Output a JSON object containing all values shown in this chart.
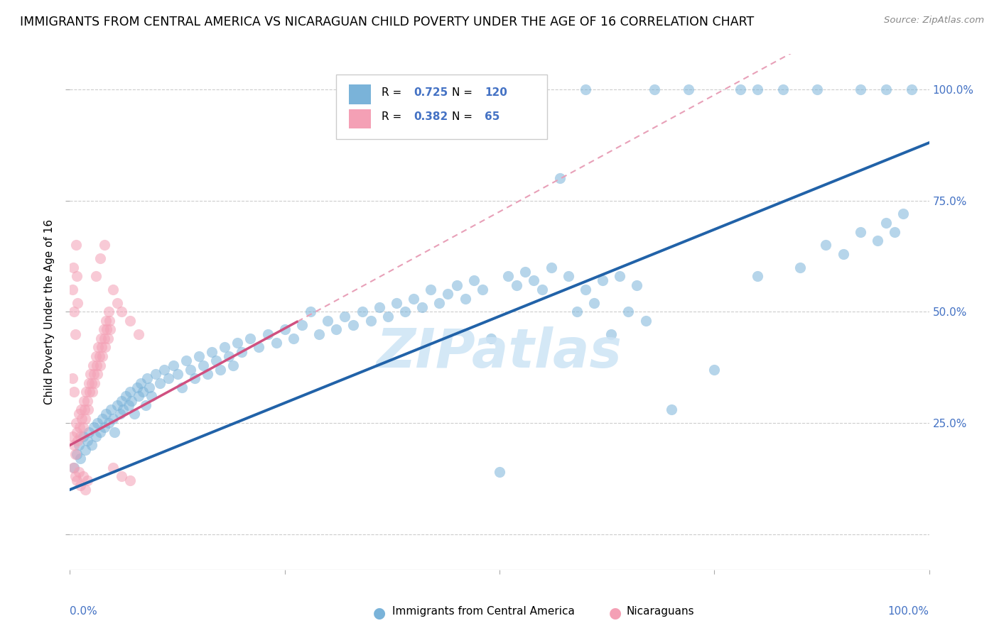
{
  "title": "IMMIGRANTS FROM CENTRAL AMERICA VS NICARAGUAN CHILD POVERTY UNDER THE AGE OF 16 CORRELATION CHART",
  "source": "Source: ZipAtlas.com",
  "ylabel": "Child Poverty Under the Age of 16",
  "legend_label1": "Immigrants from Central America",
  "legend_label2": "Nicaraguans",
  "R1": 0.725,
  "N1": 120,
  "R2": 0.382,
  "N2": 65,
  "color_blue": "#7ab3d9",
  "color_pink": "#f4a0b5",
  "color_blue_line": "#2162a8",
  "color_pink_line": "#d05080",
  "color_dashed": "#e8a0b8",
  "watermark_color": "#cde4f5",
  "bg_color": "#ffffff",
  "grid_color": "#cccccc",
  "title_fontsize": 12.5,
  "tick_label_color": "#4472c4",
  "blue_line_slope": 0.78,
  "blue_line_intercept": 0.1,
  "pink_line_slope": 1.05,
  "pink_line_intercept": 0.2,
  "dashed_line_slope": 1.05,
  "dashed_line_intercept": 0.2,
  "xlim": [
    0,
    1
  ],
  "ylim": [
    -0.08,
    1.08
  ],
  "yticks": [
    0.0,
    0.25,
    0.5,
    0.75,
    1.0
  ],
  "ytick_labels_right": [
    "",
    "25.0%",
    "50.0%",
    "75.0%",
    "100.0%"
  ],
  "blue_scatter": [
    [
      0.005,
      0.15
    ],
    [
      0.008,
      0.18
    ],
    [
      0.01,
      0.2
    ],
    [
      0.012,
      0.17
    ],
    [
      0.015,
      0.22
    ],
    [
      0.018,
      0.19
    ],
    [
      0.02,
      0.21
    ],
    [
      0.022,
      0.23
    ],
    [
      0.025,
      0.2
    ],
    [
      0.028,
      0.24
    ],
    [
      0.03,
      0.22
    ],
    [
      0.032,
      0.25
    ],
    [
      0.035,
      0.23
    ],
    [
      0.038,
      0.26
    ],
    [
      0.04,
      0.24
    ],
    [
      0.042,
      0.27
    ],
    [
      0.045,
      0.25
    ],
    [
      0.048,
      0.28
    ],
    [
      0.05,
      0.26
    ],
    [
      0.052,
      0.23
    ],
    [
      0.055,
      0.29
    ],
    [
      0.058,
      0.27
    ],
    [
      0.06,
      0.3
    ],
    [
      0.062,
      0.28
    ],
    [
      0.065,
      0.31
    ],
    [
      0.068,
      0.29
    ],
    [
      0.07,
      0.32
    ],
    [
      0.072,
      0.3
    ],
    [
      0.075,
      0.27
    ],
    [
      0.078,
      0.33
    ],
    [
      0.08,
      0.31
    ],
    [
      0.082,
      0.34
    ],
    [
      0.085,
      0.32
    ],
    [
      0.088,
      0.29
    ],
    [
      0.09,
      0.35
    ],
    [
      0.092,
      0.33
    ],
    [
      0.095,
      0.31
    ],
    [
      0.1,
      0.36
    ],
    [
      0.105,
      0.34
    ],
    [
      0.11,
      0.37
    ],
    [
      0.115,
      0.35
    ],
    [
      0.12,
      0.38
    ],
    [
      0.125,
      0.36
    ],
    [
      0.13,
      0.33
    ],
    [
      0.135,
      0.39
    ],
    [
      0.14,
      0.37
    ],
    [
      0.145,
      0.35
    ],
    [
      0.15,
      0.4
    ],
    [
      0.155,
      0.38
    ],
    [
      0.16,
      0.36
    ],
    [
      0.165,
      0.41
    ],
    [
      0.17,
      0.39
    ],
    [
      0.175,
      0.37
    ],
    [
      0.18,
      0.42
    ],
    [
      0.185,
      0.4
    ],
    [
      0.19,
      0.38
    ],
    [
      0.195,
      0.43
    ],
    [
      0.2,
      0.41
    ],
    [
      0.21,
      0.44
    ],
    [
      0.22,
      0.42
    ],
    [
      0.23,
      0.45
    ],
    [
      0.24,
      0.43
    ],
    [
      0.25,
      0.46
    ],
    [
      0.26,
      0.44
    ],
    [
      0.27,
      0.47
    ],
    [
      0.28,
      0.5
    ],
    [
      0.29,
      0.45
    ],
    [
      0.3,
      0.48
    ],
    [
      0.31,
      0.46
    ],
    [
      0.32,
      0.49
    ],
    [
      0.33,
      0.47
    ],
    [
      0.34,
      0.5
    ],
    [
      0.35,
      0.48
    ],
    [
      0.36,
      0.51
    ],
    [
      0.37,
      0.49
    ],
    [
      0.38,
      0.52
    ],
    [
      0.39,
      0.5
    ],
    [
      0.4,
      0.53
    ],
    [
      0.41,
      0.51
    ],
    [
      0.42,
      0.55
    ],
    [
      0.43,
      0.52
    ],
    [
      0.44,
      0.54
    ],
    [
      0.45,
      0.56
    ],
    [
      0.46,
      0.53
    ],
    [
      0.47,
      0.57
    ],
    [
      0.48,
      0.55
    ],
    [
      0.49,
      0.44
    ],
    [
      0.5,
      0.14
    ],
    [
      0.51,
      0.58
    ],
    [
      0.52,
      0.56
    ],
    [
      0.53,
      0.59
    ],
    [
      0.54,
      0.57
    ],
    [
      0.55,
      0.55
    ],
    [
      0.56,
      0.6
    ],
    [
      0.57,
      0.8
    ],
    [
      0.58,
      0.58
    ],
    [
      0.59,
      0.5
    ],
    [
      0.6,
      0.55
    ],
    [
      0.61,
      0.52
    ],
    [
      0.62,
      0.57
    ],
    [
      0.63,
      0.45
    ],
    [
      0.64,
      0.58
    ],
    [
      0.65,
      0.5
    ],
    [
      0.66,
      0.56
    ],
    [
      0.67,
      0.48
    ],
    [
      0.7,
      0.28
    ],
    [
      0.75,
      0.37
    ],
    [
      0.8,
      0.58
    ],
    [
      0.85,
      0.6
    ],
    [
      0.88,
      0.65
    ],
    [
      0.9,
      0.63
    ],
    [
      0.92,
      0.68
    ],
    [
      0.94,
      0.66
    ],
    [
      0.95,
      0.7
    ],
    [
      0.96,
      0.68
    ],
    [
      0.97,
      0.72
    ],
    [
      0.6,
      1.0
    ],
    [
      0.68,
      1.0
    ],
    [
      0.72,
      1.0
    ],
    [
      0.78,
      1.0
    ],
    [
      0.8,
      1.0
    ],
    [
      0.83,
      1.0
    ],
    [
      0.87,
      1.0
    ],
    [
      0.92,
      1.0
    ],
    [
      0.95,
      1.0
    ],
    [
      0.98,
      1.0
    ]
  ],
  "pink_scatter": [
    [
      0.003,
      0.22
    ],
    [
      0.005,
      0.2
    ],
    [
      0.006,
      0.18
    ],
    [
      0.007,
      0.25
    ],
    [
      0.008,
      0.23
    ],
    [
      0.009,
      0.21
    ],
    [
      0.01,
      0.27
    ],
    [
      0.011,
      0.24
    ],
    [
      0.012,
      0.22
    ],
    [
      0.013,
      0.28
    ],
    [
      0.014,
      0.26
    ],
    [
      0.015,
      0.24
    ],
    [
      0.016,
      0.3
    ],
    [
      0.017,
      0.28
    ],
    [
      0.018,
      0.26
    ],
    [
      0.019,
      0.32
    ],
    [
      0.02,
      0.3
    ],
    [
      0.021,
      0.28
    ],
    [
      0.022,
      0.34
    ],
    [
      0.023,
      0.32
    ],
    [
      0.024,
      0.36
    ],
    [
      0.025,
      0.34
    ],
    [
      0.026,
      0.32
    ],
    [
      0.027,
      0.38
    ],
    [
      0.028,
      0.36
    ],
    [
      0.029,
      0.34
    ],
    [
      0.03,
      0.4
    ],
    [
      0.031,
      0.38
    ],
    [
      0.032,
      0.36
    ],
    [
      0.033,
      0.42
    ],
    [
      0.034,
      0.4
    ],
    [
      0.035,
      0.38
    ],
    [
      0.036,
      0.44
    ],
    [
      0.037,
      0.42
    ],
    [
      0.038,
      0.4
    ],
    [
      0.039,
      0.46
    ],
    [
      0.04,
      0.44
    ],
    [
      0.041,
      0.42
    ],
    [
      0.042,
      0.48
    ],
    [
      0.043,
      0.46
    ],
    [
      0.044,
      0.44
    ],
    [
      0.045,
      0.5
    ],
    [
      0.046,
      0.48
    ],
    [
      0.047,
      0.46
    ],
    [
      0.004,
      0.15
    ],
    [
      0.006,
      0.13
    ],
    [
      0.008,
      0.12
    ],
    [
      0.01,
      0.14
    ],
    [
      0.012,
      0.11
    ],
    [
      0.015,
      0.13
    ],
    [
      0.018,
      0.1
    ],
    [
      0.02,
      0.12
    ],
    [
      0.003,
      0.55
    ],
    [
      0.004,
      0.6
    ],
    [
      0.005,
      0.5
    ],
    [
      0.006,
      0.45
    ],
    [
      0.007,
      0.65
    ],
    [
      0.008,
      0.58
    ],
    [
      0.009,
      0.52
    ],
    [
      0.03,
      0.58
    ],
    [
      0.035,
      0.62
    ],
    [
      0.04,
      0.65
    ],
    [
      0.003,
      0.35
    ],
    [
      0.005,
      0.32
    ],
    [
      0.05,
      0.55
    ],
    [
      0.055,
      0.52
    ],
    [
      0.06,
      0.5
    ],
    [
      0.07,
      0.48
    ],
    [
      0.08,
      0.45
    ],
    [
      0.05,
      0.15
    ],
    [
      0.06,
      0.13
    ],
    [
      0.07,
      0.12
    ]
  ]
}
